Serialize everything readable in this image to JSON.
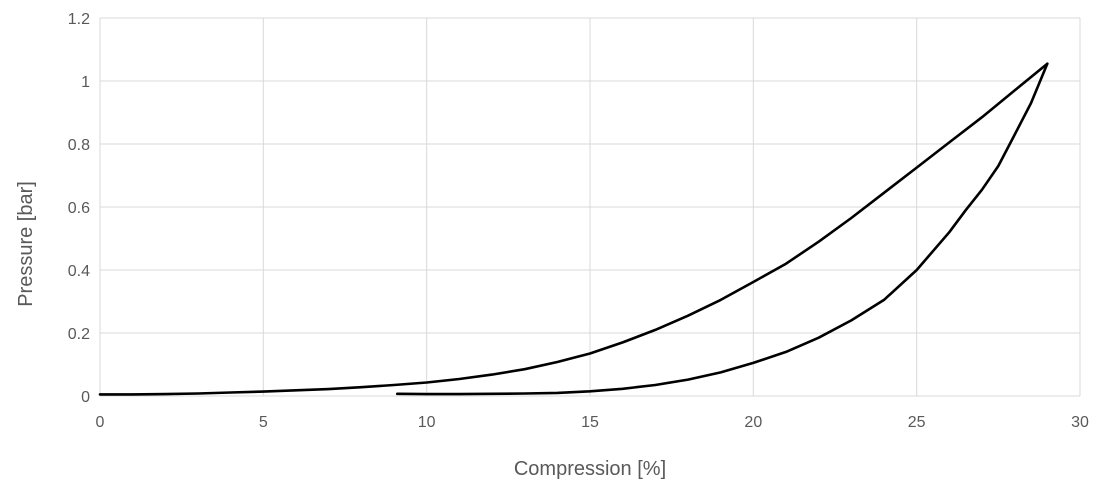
{
  "chart_data": {
    "type": "scatter",
    "title": "",
    "xlabel": "Compression [%]",
    "ylabel": "Pressure [bar]",
    "xlim": [
      0,
      30
    ],
    "ylim": [
      0,
      1.2
    ],
    "xticks": [
      0,
      5,
      10,
      15,
      20,
      25,
      30
    ],
    "yticks": [
      0,
      0.2,
      0.4,
      0.6,
      0.8,
      1,
      1.2
    ],
    "xtick_labels": [
      "0",
      "5",
      "10",
      "15",
      "20",
      "25",
      "30"
    ],
    "ytick_labels": [
      "0",
      "0.2",
      "0.4",
      "0.6",
      "0.8",
      "1",
      "1.2"
    ],
    "grid": true,
    "legend": "none",
    "line_color": "#000000",
    "series": [
      {
        "points": [
          [
            0,
            0.005
          ],
          [
            1,
            0.005
          ],
          [
            2,
            0.006
          ],
          [
            3,
            0.008
          ],
          [
            4,
            0.011
          ],
          [
            5,
            0.014
          ],
          [
            6,
            0.018
          ],
          [
            7,
            0.022
          ],
          [
            8,
            0.028
          ],
          [
            9,
            0.035
          ],
          [
            10,
            0.043
          ],
          [
            11,
            0.054
          ],
          [
            12,
            0.068
          ],
          [
            13,
            0.085
          ],
          [
            14,
            0.108
          ],
          [
            15,
            0.135
          ],
          [
            16,
            0.17
          ],
          [
            17,
            0.21
          ],
          [
            18,
            0.255
          ],
          [
            19,
            0.305
          ],
          [
            20,
            0.362
          ],
          [
            21,
            0.42
          ],
          [
            22,
            0.49
          ],
          [
            23,
            0.565
          ],
          [
            24,
            0.645
          ],
          [
            25,
            0.725
          ],
          [
            26,
            0.805
          ],
          [
            27,
            0.885
          ],
          [
            28,
            0.97
          ],
          [
            29,
            1.055
          ]
        ]
      },
      {
        "points": [
          [
            29,
            1.055
          ],
          [
            28.5,
            0.93
          ],
          [
            28,
            0.83
          ],
          [
            27.5,
            0.73
          ],
          [
            27,
            0.655
          ],
          [
            26.5,
            0.59
          ],
          [
            26,
            0.52
          ],
          [
            25,
            0.4
          ],
          [
            24,
            0.305
          ],
          [
            23,
            0.24
          ],
          [
            22,
            0.185
          ],
          [
            21,
            0.14
          ],
          [
            20,
            0.105
          ],
          [
            19,
            0.075
          ],
          [
            18,
            0.052
          ],
          [
            17,
            0.035
          ],
          [
            16,
            0.023
          ],
          [
            15,
            0.015
          ],
          [
            14,
            0.01
          ],
          [
            13,
            0.008
          ],
          [
            12,
            0.007
          ],
          [
            11,
            0.006
          ],
          [
            10,
            0.006
          ],
          [
            9.1,
            0.007
          ]
        ]
      }
    ]
  }
}
